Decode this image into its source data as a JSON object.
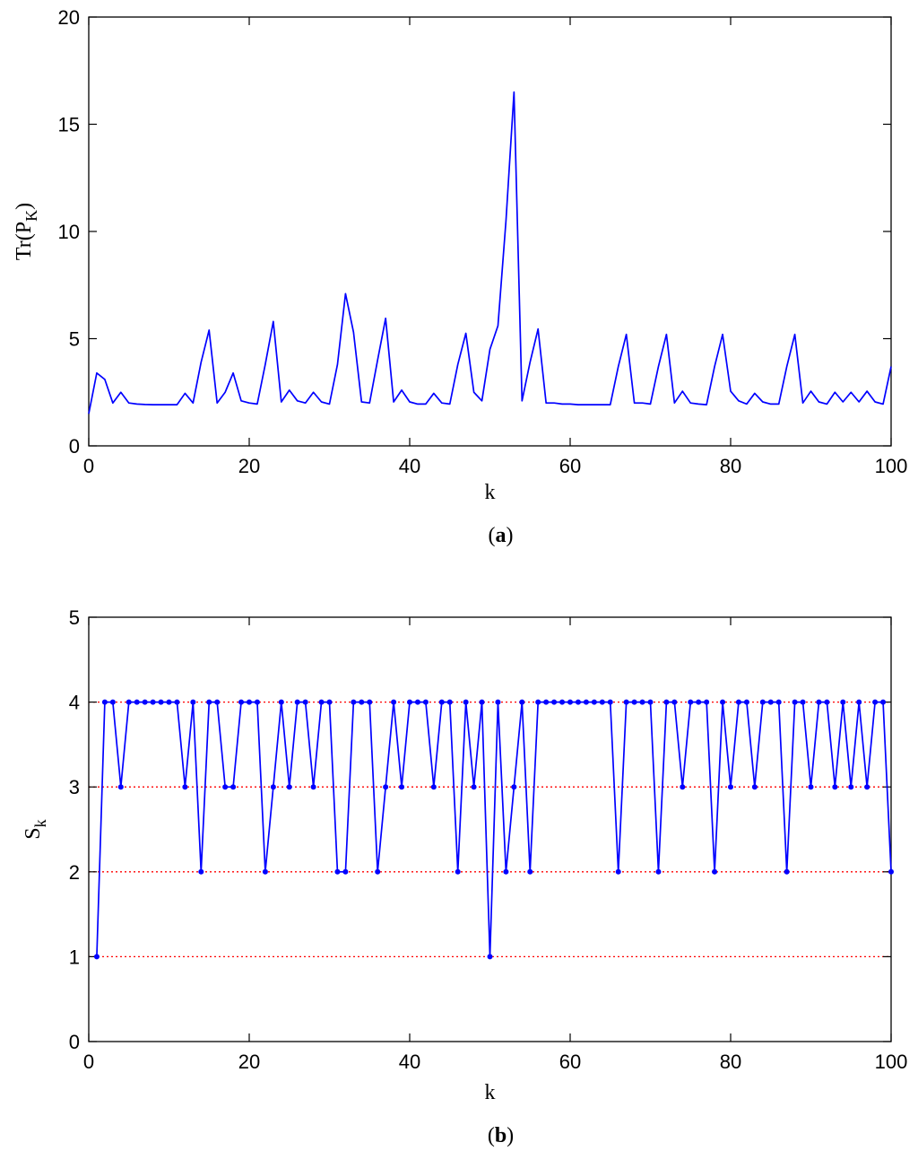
{
  "chart_data": [
    {
      "type": "line",
      "caption_letter": "a",
      "xlabel": "k",
      "ylabel": "Tr(P",
      "ylabel_sub": "K",
      "ylabel_end": ")",
      "xlim": [
        0,
        100
      ],
      "ylim": [
        0,
        20
      ],
      "xticks": [
        0,
        20,
        40,
        60,
        80,
        100
      ],
      "yticks": [
        0,
        5,
        10,
        15,
        20
      ],
      "grid": false,
      "series": [
        {
          "color": "#0000ff",
          "x": [
            0,
            1,
            2,
            3,
            4,
            5,
            6,
            7,
            8,
            9,
            10,
            11,
            12,
            13,
            14,
            15,
            16,
            17,
            18,
            19,
            20,
            21,
            22,
            23,
            24,
            25,
            26,
            27,
            28,
            29,
            30,
            31,
            32,
            33,
            34,
            35,
            36,
            37,
            38,
            39,
            40,
            41,
            42,
            43,
            44,
            45,
            46,
            47,
            48,
            49,
            50,
            51,
            52,
            53,
            54,
            55,
            56,
            57,
            58,
            59,
            60,
            61,
            62,
            63,
            64,
            65,
            66,
            67,
            68,
            69,
            70,
            71,
            72,
            73,
            74,
            75,
            76,
            77,
            78,
            79,
            80,
            81,
            82,
            83,
            84,
            85,
            86,
            87,
            88,
            89,
            90,
            91,
            92,
            93,
            94,
            95,
            96,
            97,
            98,
            99,
            100
          ],
          "y": [
            1.5,
            3.4,
            3.1,
            2.0,
            2.5,
            2.0,
            1.95,
            1.93,
            1.92,
            1.92,
            1.92,
            1.92,
            2.45,
            2.0,
            3.9,
            5.4,
            2.0,
            2.5,
            3.4,
            2.1,
            2.0,
            1.95,
            3.8,
            5.8,
            2.05,
            2.6,
            2.1,
            2.0,
            2.5,
            2.05,
            1.95,
            3.8,
            7.1,
            5.3,
            2.05,
            2.0,
            4.0,
            5.95,
            2.05,
            2.6,
            2.05,
            1.95,
            1.95,
            2.45,
            2.0,
            1.95,
            3.8,
            5.25,
            2.5,
            2.1,
            4.5,
            5.6,
            10.5,
            16.5,
            2.1,
            3.9,
            5.45,
            2.0,
            2.0,
            1.95,
            1.95,
            1.92,
            1.92,
            1.92,
            1.92,
            1.92,
            3.7,
            5.2,
            2.0,
            2.0,
            1.95,
            3.7,
            5.2,
            2.0,
            2.55,
            2.0,
            1.95,
            1.92,
            3.7,
            5.2,
            2.55,
            2.1,
            1.95,
            2.45,
            2.05,
            1.95,
            1.95,
            3.7,
            5.2,
            2.0,
            2.55,
            2.05,
            1.95,
            2.5,
            2.05,
            2.5,
            2.05,
            2.55,
            2.05,
            1.95,
            3.7
          ]
        }
      ]
    },
    {
      "type": "line",
      "caption_letter": "b",
      "xlabel": "k",
      "ylabel": "S",
      "ylabel_sub": "k",
      "xlim": [
        0,
        100
      ],
      "ylim": [
        0,
        5
      ],
      "xticks": [
        0,
        20,
        40,
        60,
        80,
        100
      ],
      "yticks": [
        0,
        1,
        2,
        3,
        4,
        5
      ],
      "grid": false,
      "reference_lines": {
        "values": [
          1,
          2,
          3,
          4
        ],
        "color": "#ff0000",
        "style": "dotted"
      },
      "series": [
        {
          "color": "#0000ff",
          "markers": true,
          "x": [
            1,
            2,
            3,
            4,
            5,
            6,
            7,
            8,
            9,
            10,
            11,
            12,
            13,
            14,
            15,
            16,
            17,
            18,
            19,
            20,
            21,
            22,
            23,
            24,
            25,
            26,
            27,
            28,
            29,
            30,
            31,
            32,
            33,
            34,
            35,
            36,
            37,
            38,
            39,
            40,
            41,
            42,
            43,
            44,
            45,
            46,
            47,
            48,
            49,
            50,
            51,
            52,
            53,
            54,
            55,
            56,
            57,
            58,
            59,
            60,
            61,
            62,
            63,
            64,
            65,
            66,
            67,
            68,
            69,
            70,
            71,
            72,
            73,
            74,
            75,
            76,
            77,
            78,
            79,
            80,
            81,
            82,
            83,
            84,
            85,
            86,
            87,
            88,
            89,
            90,
            91,
            92,
            93,
            94,
            95,
            96,
            97,
            98,
            99,
            100
          ],
          "y": [
            1,
            4,
            4,
            3,
            4,
            4,
            4,
            4,
            4,
            4,
            4,
            3,
            4,
            2,
            4,
            4,
            3,
            3,
            4,
            4,
            4,
            2,
            3,
            4,
            3,
            4,
            4,
            3,
            4,
            4,
            2,
            2,
            4,
            4,
            4,
            2,
            3,
            4,
            3,
            4,
            4,
            4,
            3,
            4,
            4,
            2,
            4,
            3,
            4,
            1,
            4,
            2,
            3,
            4,
            2,
            4,
            4,
            4,
            4,
            4,
            4,
            4,
            4,
            4,
            4,
            2,
            4,
            4,
            4,
            4,
            2,
            4,
            4,
            3,
            4,
            4,
            4,
            2,
            4,
            3,
            4,
            4,
            3,
            4,
            4,
            4,
            2,
            4,
            4,
            3,
            4,
            4,
            3,
            4,
            3,
            4,
            3,
            4,
            4,
            2
          ]
        }
      ]
    }
  ]
}
